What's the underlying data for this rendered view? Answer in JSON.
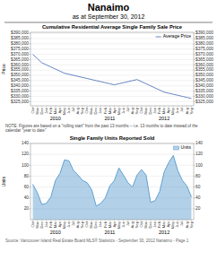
{
  "title": "Nanaimo",
  "subtitle": "as at September 30, 2012",
  "annotations": [
    "NOTE:  Figures are based on a \"rolling start\" from the past 13 months -- i.e. 13 months to date instead of the calendar \"year to date\"",
    "Source:  Vancouver Island Real Estate Board  MLS® Statistics - September 30, 2012                                          Nanaimo - Page 1"
  ],
  "chart_data": [
    {
      "type": "line",
      "title": "Cumulative Residential Average Single Family Sale Price",
      "ylabel": "Price",
      "categories": [
        "Oct",
        "Nov",
        "Dec",
        "Jan",
        "Feb",
        "Mar",
        "Apr",
        "May",
        "Jun",
        "Jul",
        "Aug",
        "Sep",
        "Oct",
        "Nov",
        "Dec",
        "Jan",
        "Feb",
        "Mar",
        "Apr",
        "May",
        "Jun",
        "Jul",
        "Aug",
        "Sep",
        "Oct",
        "Nov",
        "Dec",
        "Jan",
        "Feb",
        "Mar",
        "Apr",
        "May",
        "Jun",
        "Jul",
        "Aug",
        "Sep"
      ],
      "series": [
        {
          "name": "Average Price",
          "color": "#5577bb",
          "values": [
            370000,
            366000,
            362000,
            360000,
            358000,
            356000,
            354000,
            352000,
            351000,
            350000,
            349000,
            348000,
            347000,
            346000,
            345000,
            344000,
            343000,
            342000,
            341000,
            342000,
            343000,
            344000,
            345000,
            346000,
            344000,
            342000,
            340000,
            338000,
            336000,
            334000,
            333000,
            332000,
            331000,
            330000,
            329000,
            328000
          ]
        }
      ],
      "ylim": [
        321000,
        391000
      ],
      "yticks": [
        {
          "value": 325000,
          "label": "$325,000"
        },
        {
          "value": 330000,
          "label": "$330,000"
        },
        {
          "value": 335000,
          "label": "$335,000"
        },
        {
          "value": 340000,
          "label": "$340,000"
        },
        {
          "value": 345000,
          "label": "$345,000"
        },
        {
          "value": 350000,
          "label": "$350,000"
        },
        {
          "value": 355000,
          "label": "$355,000"
        },
        {
          "value": 360000,
          "label": "$360,000"
        },
        {
          "value": 365000,
          "label": "$365,000"
        },
        {
          "value": 370000,
          "label": "$370,000"
        },
        {
          "value": 375000,
          "label": "$375,000"
        },
        {
          "value": 380000,
          "label": "$380,000"
        },
        {
          "value": 385000,
          "label": "$385,000"
        },
        {
          "value": 390000,
          "label": "$390,000"
        }
      ],
      "y2lim": [
        321000,
        391000
      ],
      "y2ticks": [
        {
          "value": 325000,
          "label": "$325,000"
        },
        {
          "value": 330000,
          "label": "$330,000"
        },
        {
          "value": 335000,
          "label": "$335,000"
        },
        {
          "value": 340000,
          "label": "$340,000"
        },
        {
          "value": 345000,
          "label": "$345,000"
        },
        {
          "value": 350000,
          "label": "$350,000"
        },
        {
          "value": 355000,
          "label": "$355,000"
        },
        {
          "value": 360000,
          "label": "$360,000"
        },
        {
          "value": 365000,
          "label": "$365,000"
        },
        {
          "value": 370000,
          "label": "$370,000"
        },
        {
          "value": 375000,
          "label": "$375,000"
        },
        {
          "value": 380000,
          "label": "$380,000"
        },
        {
          "value": 385000,
          "label": "$385,000"
        },
        {
          "value": 390000,
          "label": "$390,000"
        }
      ],
      "annotations": [
        {
          "text": "2010",
          "x": 5
        },
        {
          "text": "2011",
          "x": 17
        },
        {
          "text": "2012",
          "x": 29
        }
      ],
      "grid": true,
      "legend": "upper right"
    },
    {
      "type": "area",
      "title": "Single Family Units Reported Sold",
      "ylabel": "Units",
      "categories": [
        "Oct",
        "Nov",
        "Dec",
        "Jan",
        "Feb",
        "Mar",
        "Apr",
        "May",
        "Jun",
        "Jul",
        "Aug",
        "Sep",
        "Oct",
        "Nov",
        "Dec",
        "Jan",
        "Feb",
        "Mar",
        "Apr",
        "May",
        "Jun",
        "Jul",
        "Aug",
        "Sep",
        "Oct",
        "Nov",
        "Dec",
        "Jan",
        "Feb",
        "Mar",
        "Apr",
        "May",
        "Jun",
        "Jul",
        "Aug",
        "Sep"
      ],
      "series": [
        {
          "name": "Units",
          "color": "#5599cc",
          "values": [
            65,
            50,
            28,
            30,
            42,
            72,
            85,
            110,
            108,
            90,
            82,
            72,
            68,
            55,
            25,
            30,
            40,
            62,
            72,
            95,
            82,
            68,
            60,
            82,
            92,
            82,
            32,
            35,
            52,
            88,
            105,
            118,
            90,
            72,
            62,
            42
          ]
        }
      ],
      "ylim": [
        0,
        140
      ],
      "yticks": [
        20,
        40,
        60,
        80,
        100,
        120,
        140
      ],
      "y2lim": [
        0,
        140
      ],
      "y2ticks": [
        20,
        40,
        60,
        80,
        100,
        120,
        140
      ],
      "annotations": [
        {
          "text": "2010",
          "x": 5
        },
        {
          "text": "2011",
          "x": 17
        },
        {
          "text": "2012",
          "x": 29
        }
      ],
      "grid": true,
      "legend": "upper right"
    }
  ]
}
